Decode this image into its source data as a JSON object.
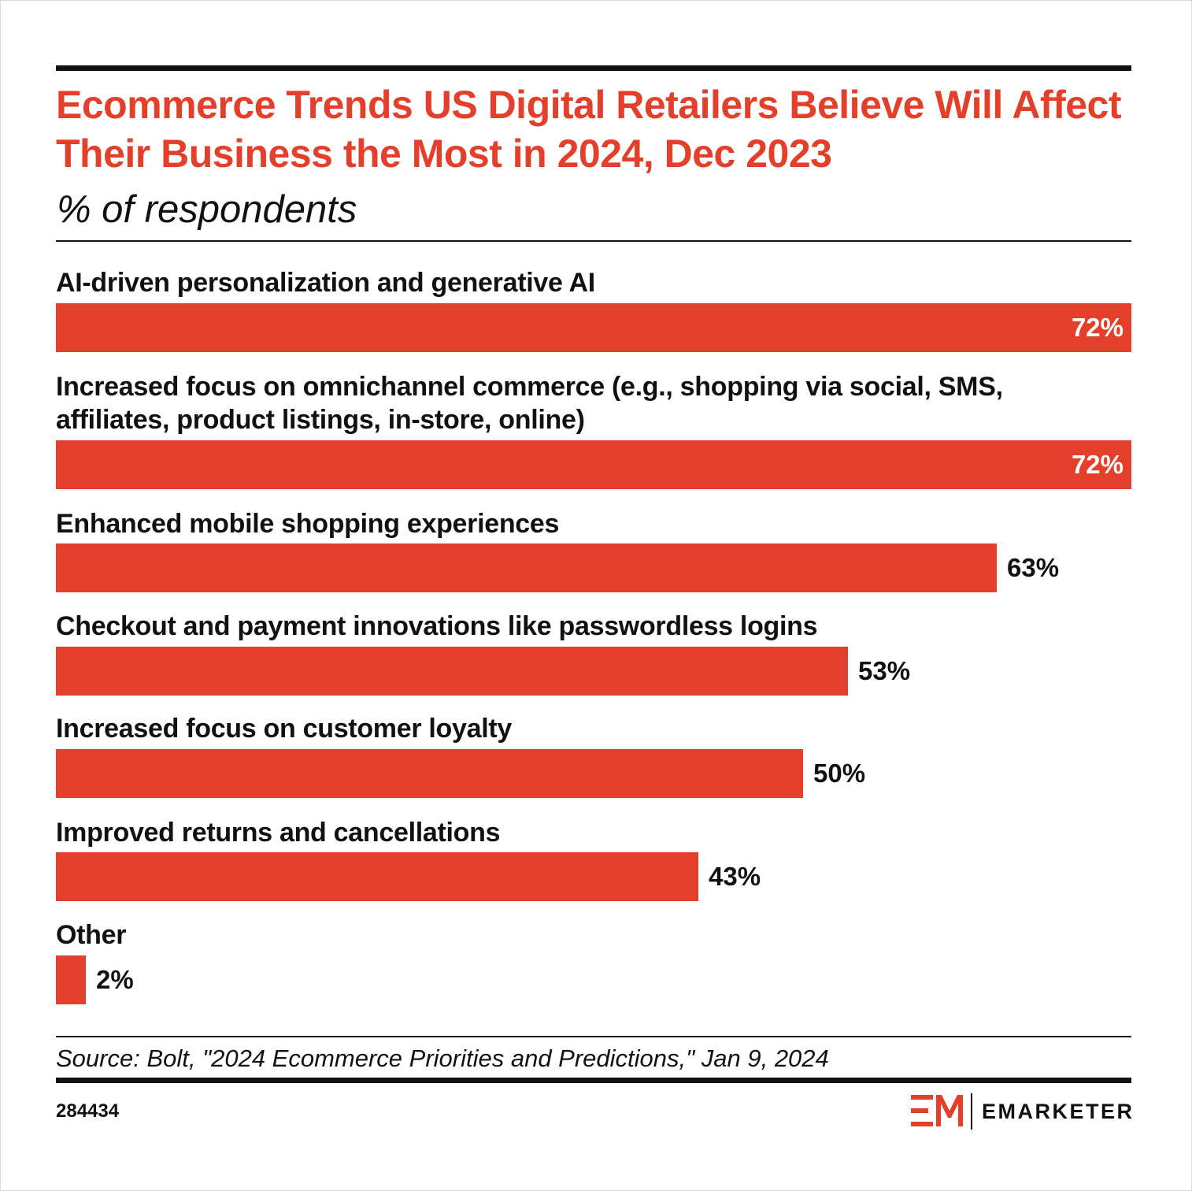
{
  "header": {
    "title": "Ecommerce Trends US Digital Retailers Believe Will Affect Their Business the Most in 2024, Dec 2023",
    "subtitle": "% of respondents"
  },
  "chart_data": {
    "type": "bar",
    "orientation": "horizontal",
    "title": "Ecommerce Trends US Digital Retailers Believe Will Affect Their Business the Most in 2024, Dec 2023",
    "ylabel": "% of respondents",
    "xlim": [
      0,
      72
    ],
    "categories": [
      "AI-driven personalization and generative AI",
      "Increased focus on omnichannel commerce (e.g., shopping via social, SMS, affiliates, product listings, in-store, online)",
      "Enhanced mobile shopping experiences",
      "Checkout and payment innovations like passwordless logins",
      "Increased focus on customer loyalty",
      "Improved returns and cancellations",
      "Other"
    ],
    "values": [
      72,
      72,
      63,
      53,
      50,
      43,
      2
    ],
    "value_labels": [
      "72%",
      "72%",
      "63%",
      "53%",
      "50%",
      "43%",
      "2%"
    ],
    "bar_color": "#e43f2a"
  },
  "footer": {
    "source": "Source: Bolt, \"2024 Ecommerce Priorities and Predictions,\" Jan 9, 2024",
    "chart_id": "284434",
    "brand": "EMARKETER"
  },
  "colors": {
    "accent": "#e43f2a",
    "text": "#111111"
  }
}
